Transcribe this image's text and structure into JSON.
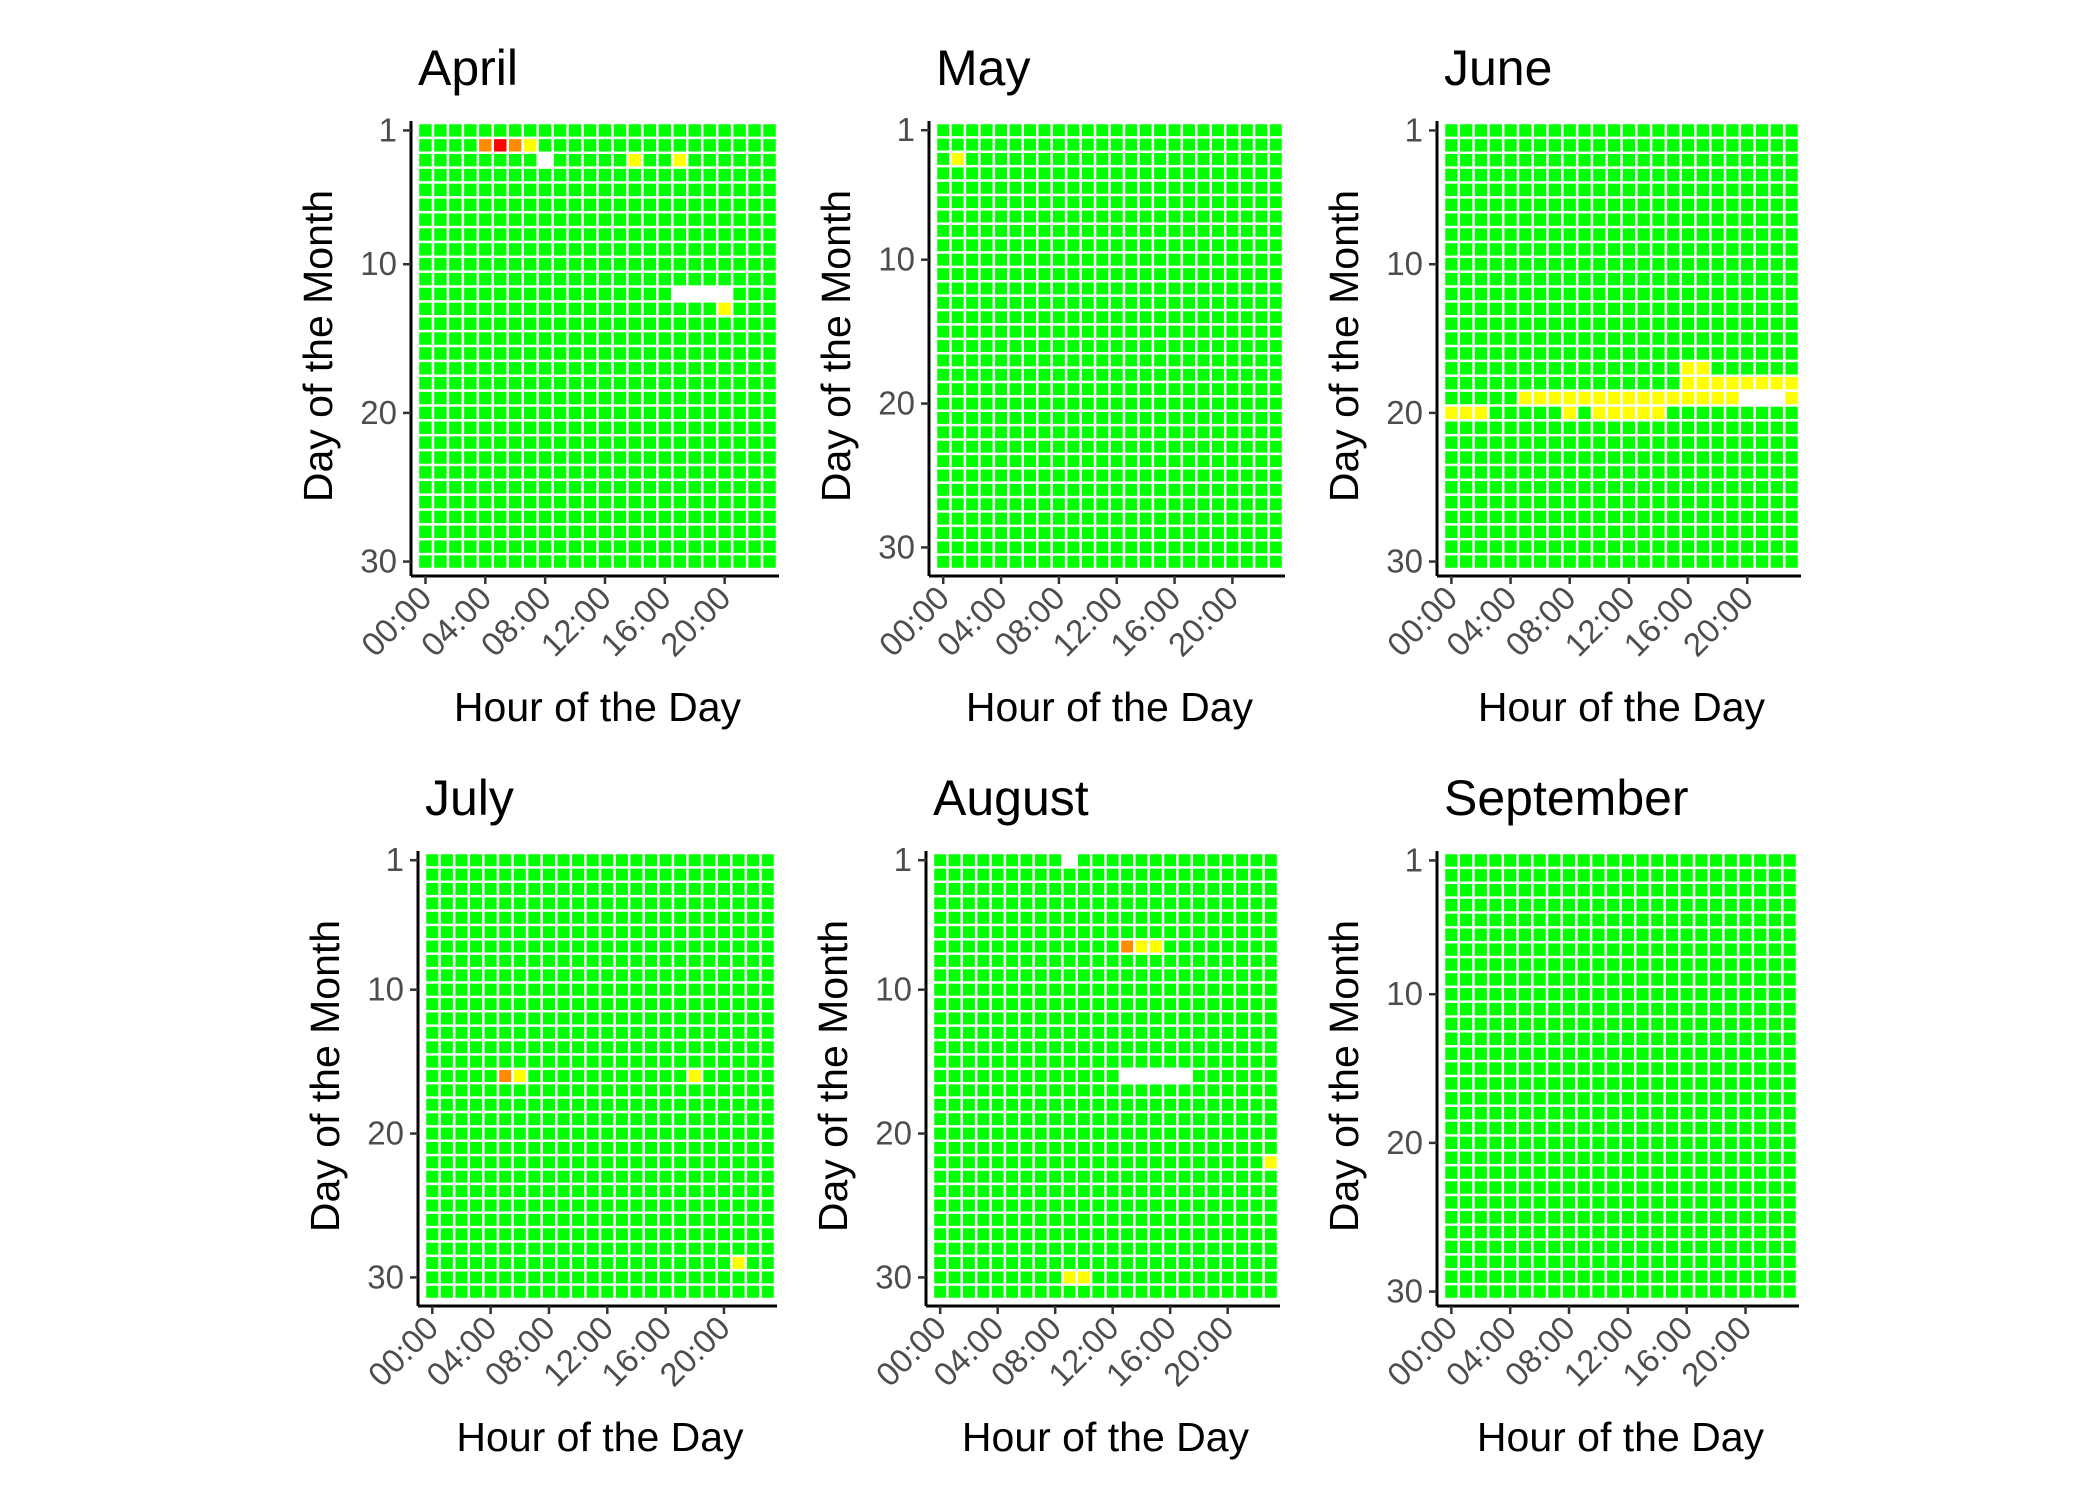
{
  "chart_data": {
    "type": "heatmap",
    "xlabel": "Hour of the Day",
    "ylabel": "Day of the Month",
    "x_tick_labels": [
      "00:00",
      "04:00",
      "08:00",
      "12:00",
      "16:00",
      "20:00"
    ],
    "x_tick_hours": [
      0,
      4,
      8,
      12,
      16,
      20
    ],
    "y_tick_labels": [
      "1",
      "10",
      "20",
      "30"
    ],
    "y_tick_days": [
      1,
      10,
      20,
      30
    ],
    "hours": 24,
    "default_status": "normal",
    "colors": {
      "normal": "#00ff00",
      "elevated": "#ffff00",
      "high": "#ff8c00",
      "severe": "#ff0000",
      "missing": "#ffffff",
      "axis": "#000000",
      "tick_text": "#4d4d4d"
    },
    "panels": [
      {
        "month": "April",
        "days": 30,
        "cells": [
          {
            "day": 2,
            "hour": 4,
            "status": "high"
          },
          {
            "day": 2,
            "hour": 5,
            "status": "severe"
          },
          {
            "day": 2,
            "hour": 6,
            "status": "high"
          },
          {
            "day": 2,
            "hour": 7,
            "status": "elevated"
          },
          {
            "day": 3,
            "hour": 8,
            "status": "missing"
          },
          {
            "day": 3,
            "hour": 14,
            "status": "elevated"
          },
          {
            "day": 3,
            "hour": 17,
            "status": "elevated"
          },
          {
            "day": 12,
            "hour": 17,
            "status": "missing"
          },
          {
            "day": 12,
            "hour": 18,
            "status": "missing"
          },
          {
            "day": 12,
            "hour": 19,
            "status": "missing"
          },
          {
            "day": 12,
            "hour": 20,
            "status": "missing"
          },
          {
            "day": 13,
            "hour": 20,
            "status": "elevated"
          }
        ]
      },
      {
        "month": "May",
        "days": 31,
        "cells": [
          {
            "day": 3,
            "hour": 1,
            "status": "elevated"
          }
        ]
      },
      {
        "month": "June",
        "days": 30,
        "cells": [
          {
            "day": 17,
            "hour": 16,
            "status": "elevated"
          },
          {
            "day": 17,
            "hour": 17,
            "status": "elevated"
          },
          {
            "day": 18,
            "hour": 16,
            "status": "elevated"
          },
          {
            "day": 18,
            "hour": 17,
            "status": "elevated"
          },
          {
            "day": 18,
            "hour": 18,
            "status": "elevated"
          },
          {
            "day": 18,
            "hour": 19,
            "status": "elevated"
          },
          {
            "day": 18,
            "hour": 20,
            "status": "elevated"
          },
          {
            "day": 18,
            "hour": 21,
            "status": "elevated"
          },
          {
            "day": 18,
            "hour": 22,
            "status": "elevated"
          },
          {
            "day": 18,
            "hour": 23,
            "status": "elevated"
          },
          {
            "day": 19,
            "hour": 5,
            "status": "elevated"
          },
          {
            "day": 19,
            "hour": 6,
            "status": "elevated"
          },
          {
            "day": 19,
            "hour": 7,
            "status": "elevated"
          },
          {
            "day": 19,
            "hour": 8,
            "status": "elevated"
          },
          {
            "day": 19,
            "hour": 9,
            "status": "elevated"
          },
          {
            "day": 19,
            "hour": 10,
            "status": "elevated"
          },
          {
            "day": 19,
            "hour": 11,
            "status": "elevated"
          },
          {
            "day": 19,
            "hour": 12,
            "status": "elevated"
          },
          {
            "day": 19,
            "hour": 13,
            "status": "elevated"
          },
          {
            "day": 19,
            "hour": 14,
            "status": "elevated"
          },
          {
            "day": 19,
            "hour": 15,
            "status": "elevated"
          },
          {
            "day": 19,
            "hour": 16,
            "status": "elevated"
          },
          {
            "day": 19,
            "hour": 17,
            "status": "elevated"
          },
          {
            "day": 19,
            "hour": 18,
            "status": "elevated"
          },
          {
            "day": 19,
            "hour": 19,
            "status": "elevated"
          },
          {
            "day": 19,
            "hour": 20,
            "status": "missing"
          },
          {
            "day": 19,
            "hour": 21,
            "status": "missing"
          },
          {
            "day": 19,
            "hour": 22,
            "status": "missing"
          },
          {
            "day": 19,
            "hour": 23,
            "status": "elevated"
          },
          {
            "day": 20,
            "hour": 0,
            "status": "elevated"
          },
          {
            "day": 20,
            "hour": 1,
            "status": "elevated"
          },
          {
            "day": 20,
            "hour": 2,
            "status": "elevated"
          },
          {
            "day": 20,
            "hour": 8,
            "status": "elevated"
          },
          {
            "day": 20,
            "hour": 10,
            "status": "elevated"
          },
          {
            "day": 20,
            "hour": 11,
            "status": "elevated"
          },
          {
            "day": 20,
            "hour": 12,
            "status": "elevated"
          },
          {
            "day": 20,
            "hour": 13,
            "status": "elevated"
          },
          {
            "day": 20,
            "hour": 14,
            "status": "elevated"
          }
        ]
      },
      {
        "month": "July",
        "days": 31,
        "cells": [
          {
            "day": 16,
            "hour": 5,
            "status": "high"
          },
          {
            "day": 16,
            "hour": 6,
            "status": "elevated"
          },
          {
            "day": 16,
            "hour": 18,
            "status": "elevated"
          },
          {
            "day": 29,
            "hour": 21,
            "status": "elevated"
          }
        ]
      },
      {
        "month": "August",
        "days": 31,
        "cells": [
          {
            "day": 1,
            "hour": 9,
            "status": "missing"
          },
          {
            "day": 7,
            "hour": 13,
            "status": "high"
          },
          {
            "day": 7,
            "hour": 14,
            "status": "elevated"
          },
          {
            "day": 7,
            "hour": 15,
            "status": "elevated"
          },
          {
            "day": 16,
            "hour": 13,
            "status": "missing"
          },
          {
            "day": 16,
            "hour": 14,
            "status": "missing"
          },
          {
            "day": 16,
            "hour": 15,
            "status": "missing"
          },
          {
            "day": 16,
            "hour": 16,
            "status": "missing"
          },
          {
            "day": 16,
            "hour": 17,
            "status": "missing"
          },
          {
            "day": 22,
            "hour": 23,
            "status": "elevated"
          },
          {
            "day": 30,
            "hour": 9,
            "status": "elevated"
          },
          {
            "day": 30,
            "hour": 10,
            "status": "elevated"
          }
        ]
      },
      {
        "month": "September",
        "days": 30,
        "cells": []
      }
    ]
  }
}
